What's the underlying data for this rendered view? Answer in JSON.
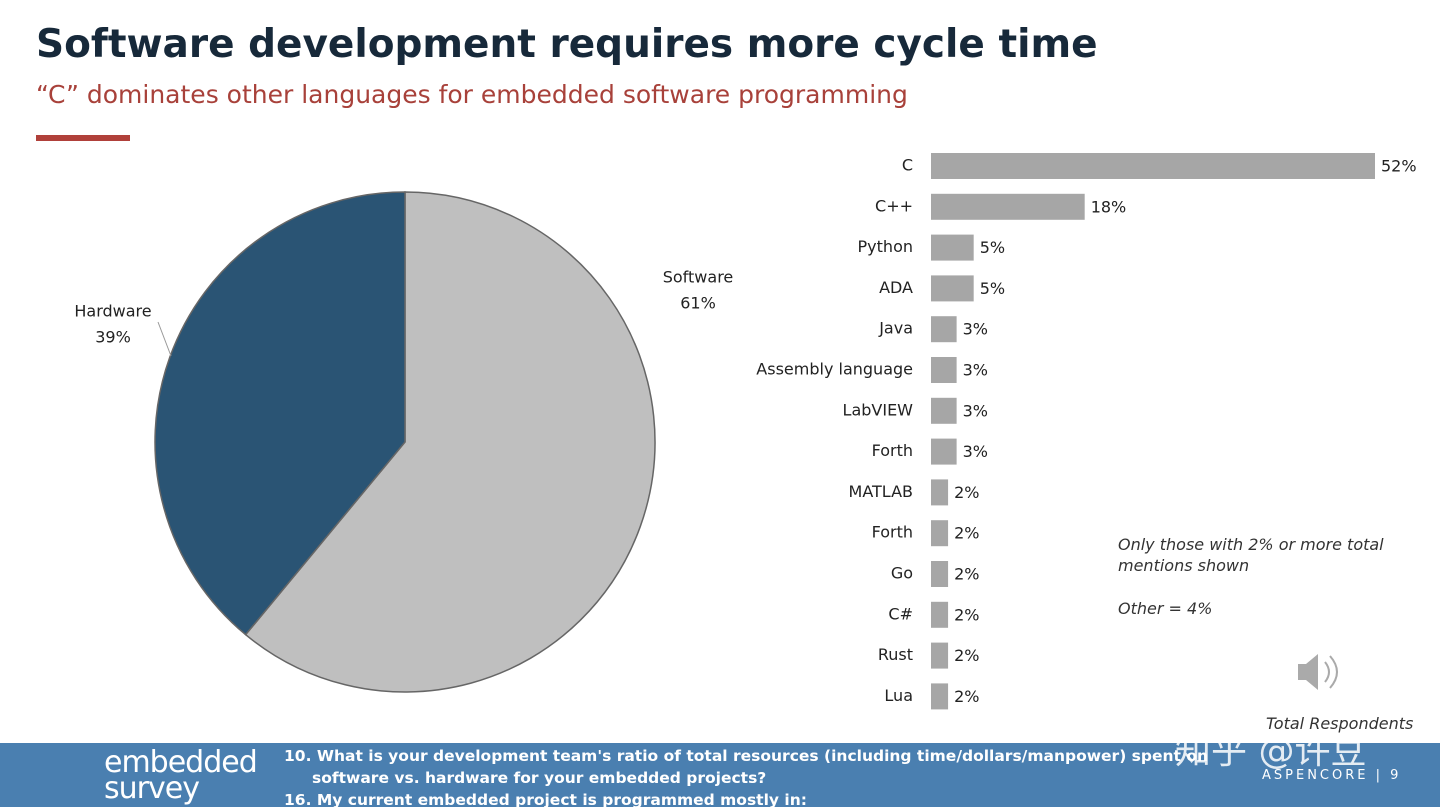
{
  "header": {
    "title": "Software development requires more cycle time",
    "subtitle": "“C” dominates other languages for embedded software programming"
  },
  "chart_data": [
    {
      "type": "pie",
      "categories": [
        "Software",
        "Hardware"
      ],
      "values": [
        61,
        39
      ],
      "value_labels": [
        "61%",
        "39%"
      ],
      "colors": [
        "#bfbfbf",
        "#2a5474"
      ]
    },
    {
      "type": "hbar",
      "categories": [
        "C",
        "C++",
        "Python",
        "ADA",
        "Java",
        "Assembly language",
        "LabVIEW",
        "Forth",
        "MATLAB",
        "Forth",
        "Go",
        "C#",
        "Rust",
        "Lua"
      ],
      "values": [
        52,
        18,
        5,
        5,
        3,
        3,
        3,
        3,
        2,
        2,
        2,
        2,
        2,
        2
      ],
      "value_labels": [
        "52%",
        "18%",
        "5%",
        "5%",
        "3%",
        "3%",
        "3%",
        "3%",
        "2%",
        "2%",
        "2%",
        "2%",
        "2%",
        "2%"
      ],
      "color": "#a6a6a6"
    }
  ],
  "notes": [
    "Only those with 2% or more total mentions shown",
    "Other = 4%",
    "Total Respondents"
  ],
  "footer": {
    "logo_top": "embedded",
    "logo_bottom": "survey",
    "questions": [
      "10. What is your development team's ratio of total resources (including time/dollars/manpower) spent on software vs. hardware for your embedded projects?",
      "16. My current embedded project is programmed mostly in:"
    ],
    "brand": "ASPENCORE | 9"
  },
  "watermark": "知乎 @许豆"
}
